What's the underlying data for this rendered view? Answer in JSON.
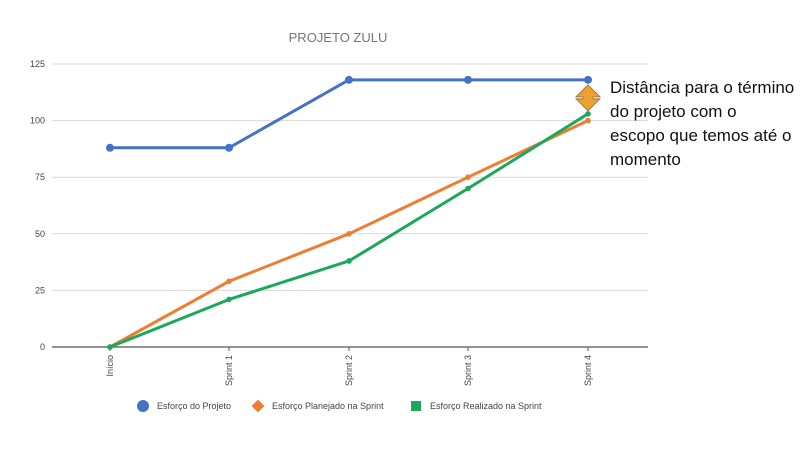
{
  "chart_data": {
    "type": "line",
    "title": "PROJETO ZULU",
    "categories": [
      "Início",
      "Sprint 1",
      "Sprint 2",
      "Sprint 3",
      "Sprint 4"
    ],
    "ylim": [
      0,
      125
    ],
    "yticks": [
      0,
      25,
      50,
      75,
      100,
      125
    ],
    "grid": true,
    "legend_position": "bottom",
    "series": [
      {
        "name": "Esforço do Projeto",
        "values": [
          88,
          88,
          118,
          118,
          118
        ],
        "color": "#4472C4",
        "marker": "circle"
      },
      {
        "name": "Esforço Planejado na Sprint",
        "values": [
          0,
          29,
          50,
          75,
          100
        ],
        "color": "#ED7D31",
        "marker": "diamond"
      },
      {
        "name": "Esforço Realizado na Sprint",
        "values": [
          0,
          21,
          38,
          70,
          103
        ],
        "color": "#1AA85C",
        "marker": "square"
      }
    ],
    "annotation": {
      "text": "Distância para o término do projeto com o escopo que temos até o momento",
      "arrow_color": "#F0A030"
    }
  }
}
